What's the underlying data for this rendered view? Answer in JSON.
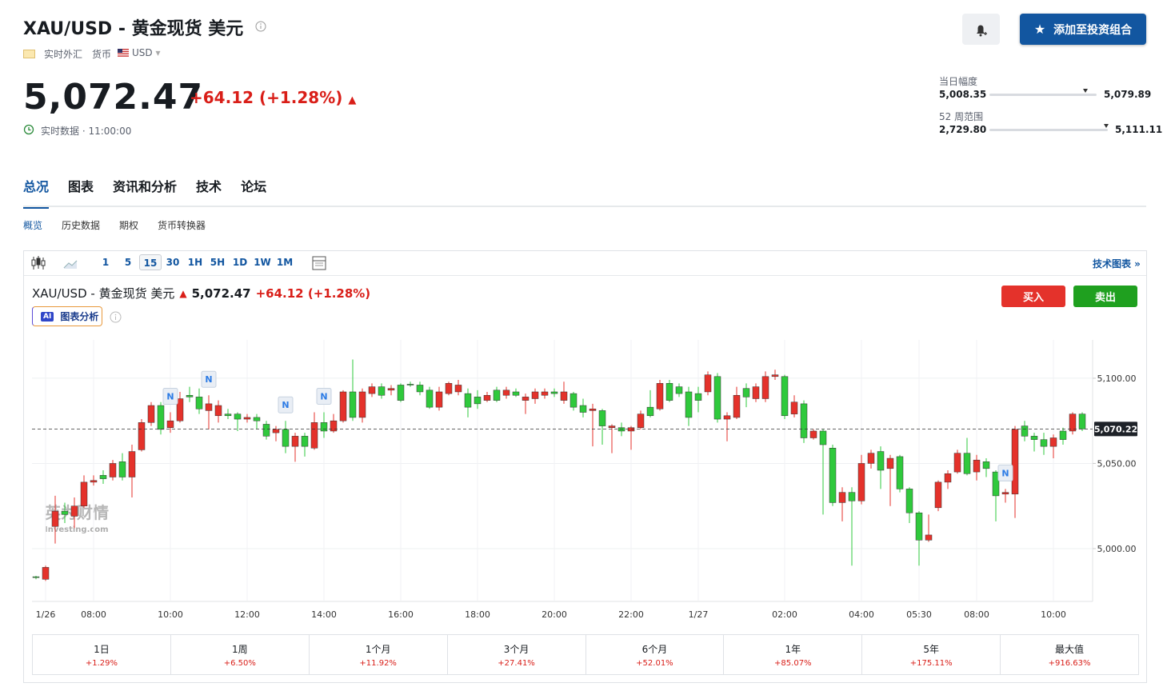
{
  "header": {
    "title": "XAU/USD - 黄金现货 美元",
    "market": "实时外汇",
    "asset_class": "货币",
    "currency": "USD",
    "price": {
      "value": 5072.47,
      "label": "5,072.47"
    },
    "change": "+64.12 (+1.28%)",
    "status": "实时数据 · 11:00:00",
    "portfolio_button": "添加至投资组合"
  },
  "ranges": [
    {
      "label": "当日幅度",
      "low": {
        "value": 5008.35,
        "label": "5,008.35"
      },
      "high": {
        "value": 5079.89,
        "label": "5,079.89"
      }
    },
    {
      "label": "52 周范围",
      "low": {
        "value": 2729.8,
        "label": "2,729.80"
      },
      "high": {
        "value": 5111.11,
        "label": "5,111.11"
      }
    }
  ],
  "tabs": [
    "总况",
    "图表",
    "资讯和分析",
    "技术",
    "论坛"
  ],
  "subtabs": [
    "概览",
    "历史数据",
    "期权",
    "货币转换器"
  ],
  "toolbar": {
    "intervals": [
      "1",
      "5",
      "15",
      "30",
      "1H",
      "5H",
      "1D",
      "1W",
      "1M"
    ],
    "selected": "15",
    "link": "技术图表 »"
  },
  "chart_legend": {
    "buy": "买入",
    "sell": "卖出",
    "ai_badge": "AI",
    "ai_button": "图表分析"
  },
  "watermark": {
    "brand": "英为财情",
    "site": "Investing.com"
  },
  "chart_data": {
    "type": "candlestick",
    "categories": [
      null,
      "1/26",
      null,
      null,
      null,
      null,
      "08:00",
      null,
      null,
      null,
      null,
      null,
      null,
      null,
      "10:00",
      null,
      null,
      null,
      null,
      null,
      null,
      null,
      "12:00",
      null,
      null,
      null,
      null,
      null,
      null,
      null,
      "14:00",
      null,
      null,
      null,
      null,
      null,
      null,
      null,
      "16:00",
      null,
      null,
      null,
      null,
      null,
      null,
      null,
      "18:00",
      null,
      null,
      null,
      null,
      null,
      null,
      null,
      "20:00",
      null,
      null,
      null,
      null,
      null,
      null,
      null,
      "22:00",
      null,
      null,
      null,
      null,
      null,
      null,
      "1/27",
      null,
      null,
      null,
      null,
      null,
      null,
      null,
      null,
      "02:00",
      null,
      null,
      null,
      null,
      null,
      null,
      null,
      "04:00",
      null,
      null,
      null,
      null,
      null,
      "05:30",
      null,
      null,
      null,
      null,
      null,
      "08:00",
      null,
      null,
      null,
      null,
      null,
      null,
      null,
      "10:00",
      null,
      null,
      null
    ],
    "open": [
      4983.5,
      4982,
      5013,
      5022,
      5019,
      5025,
      5039,
      5043,
      5042,
      5051,
      5042,
      5058,
      5074,
      5084,
      5071,
      5075,
      5090,
      5089,
      5081,
      5078,
      5079,
      5079,
      5076,
      5077,
      5073,
      5068,
      5070,
      5060,
      5066,
      5059,
      5074,
      5069,
      5075,
      5092,
      5077,
      5091,
      5095,
      5093,
      5096,
      5096.5,
      5096,
      5093,
      5083,
      5091,
      5092,
      5091,
      5089,
      5087,
      5093,
      5090,
      5092,
      5087,
      5088,
      5090,
      5092,
      5087,
      5091,
      5084,
      5081,
      5081,
      5071,
      5071,
      5069,
      5071,
      5083,
      5082,
      5097,
      5095,
      5092,
      5091,
      5092,
      5101,
      5076,
      5077,
      5094,
      5088,
      5088,
      5101,
      5101,
      5079,
      5085,
      5065,
      5069,
      5059,
      5027,
      5033,
      5028,
      5050,
      5057,
      5047,
      5054,
      5035,
      5021,
      5005,
      5024,
      5039,
      5045,
      5056,
      5045,
      5051,
      5045,
      5032,
      5032,
      5072,
      5066,
      5064,
      5060,
      5069,
      5069,
      5079
    ],
    "high": [
      4984,
      4990,
      5031,
      5027,
      5030,
      5043,
      5043,
      5046,
      5052,
      5056,
      5061,
      5076,
      5086,
      5086,
      5080,
      5092,
      5095,
      5094,
      5090,
      5087,
      5082,
      5080,
      5079,
      5079,
      5075,
      5072,
      5075,
      5068,
      5068,
      5080,
      5080,
      5079,
      5093,
      5111,
      5094,
      5097,
      5097,
      5096,
      5097,
      5098,
      5098,
      5095,
      5095,
      5098,
      5099,
      5094,
      5093,
      5092,
      5095,
      5095,
      5094,
      5091,
      5094,
      5094,
      5094,
      5098,
      5092,
      5088,
      5085,
      5082,
      5073,
      5074,
      5072,
      5081,
      5093,
      5099,
      5099,
      5097,
      5095,
      5095,
      5104,
      5103,
      5080,
      5095,
      5097,
      5097,
      5104,
      5105,
      5102,
      5090,
      5087,
      5070,
      5070,
      5061,
      5036,
      5036,
      5055,
      5058,
      5060,
      5055,
      5055,
      5036,
      5022,
      5020,
      5040,
      5046,
      5058,
      5065,
      5055,
      5053,
      5046,
      5035,
      5072,
      5075,
      5068,
      5068,
      5067,
      5071,
      5080,
      5080
    ],
    "low": [
      4982,
      4981,
      5003,
      5015,
      5012,
      5024,
      5037,
      5038,
      5040,
      5040,
      5030,
      5057,
      5072,
      5067,
      5068,
      5074,
      5086,
      5079,
      5070,
      5074,
      5076,
      5069,
      5074,
      5070,
      5064,
      5063,
      5056,
      5051,
      5054,
      5058,
      5065,
      5068,
      5074,
      5075,
      5074,
      5089,
      5088,
      5090,
      5086,
      5095,
      5090,
      5082,
      5081,
      5090,
      5090,
      5077,
      5082,
      5086,
      5086,
      5088,
      5089,
      5079,
      5085,
      5088,
      5089,
      5085,
      5081,
      5077,
      5060,
      5061,
      5056,
      5066,
      5058,
      5070,
      5077,
      5081,
      5086,
      5089,
      5072,
      5080,
      5090,
      5074,
      5063,
      5076,
      5083,
      5086,
      5086,
      5099,
      5076,
      5077,
      5062,
      5064,
      5020,
      5025,
      5016,
      4990,
      5026,
      5047,
      5035,
      5025,
      5033,
      5015,
      4990,
      5004,
      5022,
      5035,
      5044,
      5043,
      5040,
      5042,
      5016,
      5027,
      5018,
      5063,
      5057,
      5055,
      5053,
      5061,
      5067,
      5069
    ],
    "close": [
      4983,
      4989,
      5022,
      5020,
      5025,
      5039,
      5040,
      5041,
      5050,
      5042,
      5057,
      5074,
      5084,
      5070,
      5075,
      5088,
      5089,
      5082,
      5085,
      5084,
      5078,
      5076,
      5077,
      5075,
      5066,
      5070,
      5060,
      5066,
      5060,
      5074,
      5069,
      5075,
      5092,
      5077,
      5092,
      5095,
      5090,
      5094,
      5087,
      5096,
      5092,
      5083,
      5092,
      5097,
      5096,
      5083,
      5085,
      5090,
      5087,
      5093,
      5090,
      5089,
      5092,
      5092,
      5091,
      5092,
      5083,
      5080,
      5082,
      5072,
      5072,
      5069,
      5071,
      5079,
      5078,
      5097,
      5087,
      5091,
      5077,
      5087,
      5102,
      5076,
      5078,
      5090,
      5089,
      5095,
      5101,
      5102,
      5078,
      5086,
      5065,
      5069,
      5061,
      5027,
      5033,
      5028,
      5050,
      5056,
      5046,
      5053,
      5035,
      5021,
      5005,
      5008,
      5039,
      5044,
      5056,
      5044,
      5052,
      5047,
      5031,
      5033,
      5070,
      5066,
      5064,
      5060,
      5065,
      5064,
      5079,
      5070.22
    ],
    "up_color": "#e4322b",
    "down_color": "#2fc93c",
    "ylim": [
      4969,
      5122.5
    ],
    "yticks": [
      {
        "value": 5000,
        "label": "5,000.00"
      },
      {
        "value": 5050,
        "label": "5,050.00"
      },
      {
        "value": 5100,
        "label": "5,100.00"
      }
    ],
    "grid": true,
    "last_price": {
      "value": 5070.22,
      "label": "5,070.22"
    },
    "news": [
      {
        "label": "N",
        "at": 14
      },
      {
        "label": "N",
        "at": 18
      },
      {
        "label": "N",
        "at": 26
      },
      {
        "label": "N",
        "at": 30
      },
      {
        "label": "N",
        "at": 101
      }
    ]
  },
  "performance": [
    {
      "period": "1日",
      "change": "+1.29%"
    },
    {
      "period": "1周",
      "change": "+6.50%"
    },
    {
      "period": "1个月",
      "change": "+11.92%"
    },
    {
      "period": "3个月",
      "change": "+27.41%"
    },
    {
      "period": "6个月",
      "change": "+52.01%"
    },
    {
      "period": "1年",
      "change": "+85.07%"
    },
    {
      "period": "5年",
      "change": "+175.11%"
    },
    {
      "period": "最大值",
      "change": "+916.63%"
    }
  ]
}
